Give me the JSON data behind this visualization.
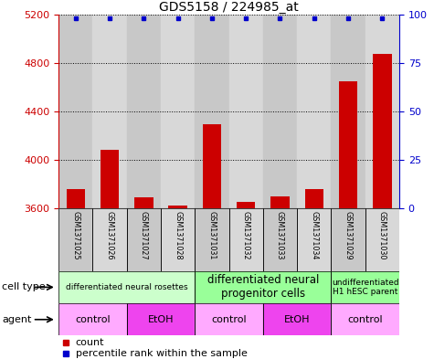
{
  "title": "GDS5158 / 224985_at",
  "samples": [
    "GSM1371025",
    "GSM1371026",
    "GSM1371027",
    "GSM1371028",
    "GSM1371031",
    "GSM1371032",
    "GSM1371033",
    "GSM1371034",
    "GSM1371029",
    "GSM1371030"
  ],
  "counts": [
    3760,
    4080,
    3690,
    3620,
    4290,
    3650,
    3700,
    3760,
    4650,
    4870
  ],
  "percentiles": [
    98,
    98,
    98,
    98,
    98,
    98,
    98,
    98,
    98,
    98
  ],
  "ylim_left": [
    3600,
    5200
  ],
  "ylim_right": [
    0,
    100
  ],
  "yticks_left": [
    3600,
    4000,
    4400,
    4800,
    5200
  ],
  "yticks_right": [
    0,
    25,
    50,
    75,
    100
  ],
  "bar_color": "#cc0000",
  "dot_color": "#0000cc",
  "cell_type_groups": [
    {
      "label": "differentiated neural rosettes",
      "start": 0,
      "end": 3,
      "color": "#ccffcc",
      "fontsize": 6.5
    },
    {
      "label": "differentiated neural\nprogenitor cells",
      "start": 4,
      "end": 7,
      "color": "#99ff99",
      "fontsize": 8.5
    },
    {
      "label": "undifferentiated\nH1 hESC parent",
      "start": 8,
      "end": 9,
      "color": "#99ff99",
      "fontsize": 6.5
    }
  ],
  "agent_groups": [
    {
      "label": "control",
      "start": 0,
      "end": 1,
      "color": "#ffaaff"
    },
    {
      "label": "EtOH",
      "start": 2,
      "end": 3,
      "color": "#ee44ee"
    },
    {
      "label": "control",
      "start": 4,
      "end": 5,
      "color": "#ffaaff"
    },
    {
      "label": "EtOH",
      "start": 6,
      "end": 7,
      "color": "#ee44ee"
    },
    {
      "label": "control",
      "start": 8,
      "end": 9,
      "color": "#ffaaff"
    }
  ],
  "left_axis_color": "#cc0000",
  "right_axis_color": "#0000cc",
  "col_bg_even": "#c8c8c8",
  "col_bg_odd": "#d8d8d8",
  "label_row_bg": "#c8c8c8"
}
